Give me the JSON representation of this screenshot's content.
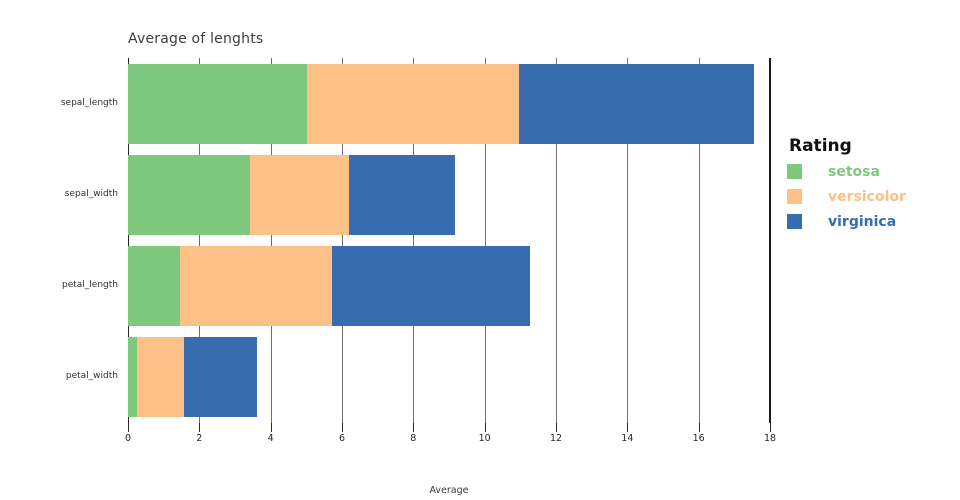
{
  "chart_data": {
    "type": "bar",
    "orientation": "horizontal",
    "stacked": true,
    "title": "Average of lenghts",
    "xlabel": "Average",
    "ylabel": "",
    "categories": [
      "sepal_length",
      "sepal_width",
      "petal_length",
      "petal_width"
    ],
    "series": [
      {
        "name": "setosa",
        "color": "#7fc97f",
        "values": [
          5.01,
          3.43,
          1.46,
          0.25
        ]
      },
      {
        "name": "versicolor",
        "color": "#fdc086",
        "values": [
          5.94,
          2.77,
          4.26,
          1.33
        ]
      },
      {
        "name": "virginica",
        "color": "#386cb0",
        "values": [
          6.59,
          2.97,
          5.55,
          2.03
        ]
      }
    ],
    "stack_totals": [
      17.54,
      9.17,
      11.27,
      3.61
    ],
    "xlim": [
      0,
      18
    ],
    "x_ticks": [
      0,
      2,
      4,
      6,
      8,
      10,
      12,
      14,
      16,
      18
    ],
    "grid": true,
    "legend": {
      "title": "Rating",
      "position": "right",
      "entries": [
        "setosa",
        "versicolor",
        "virginica"
      ]
    },
    "axis_colors": {
      "gridline": "#707070",
      "axis_line": "#262626",
      "frame_line": "#1a1a1a"
    }
  }
}
